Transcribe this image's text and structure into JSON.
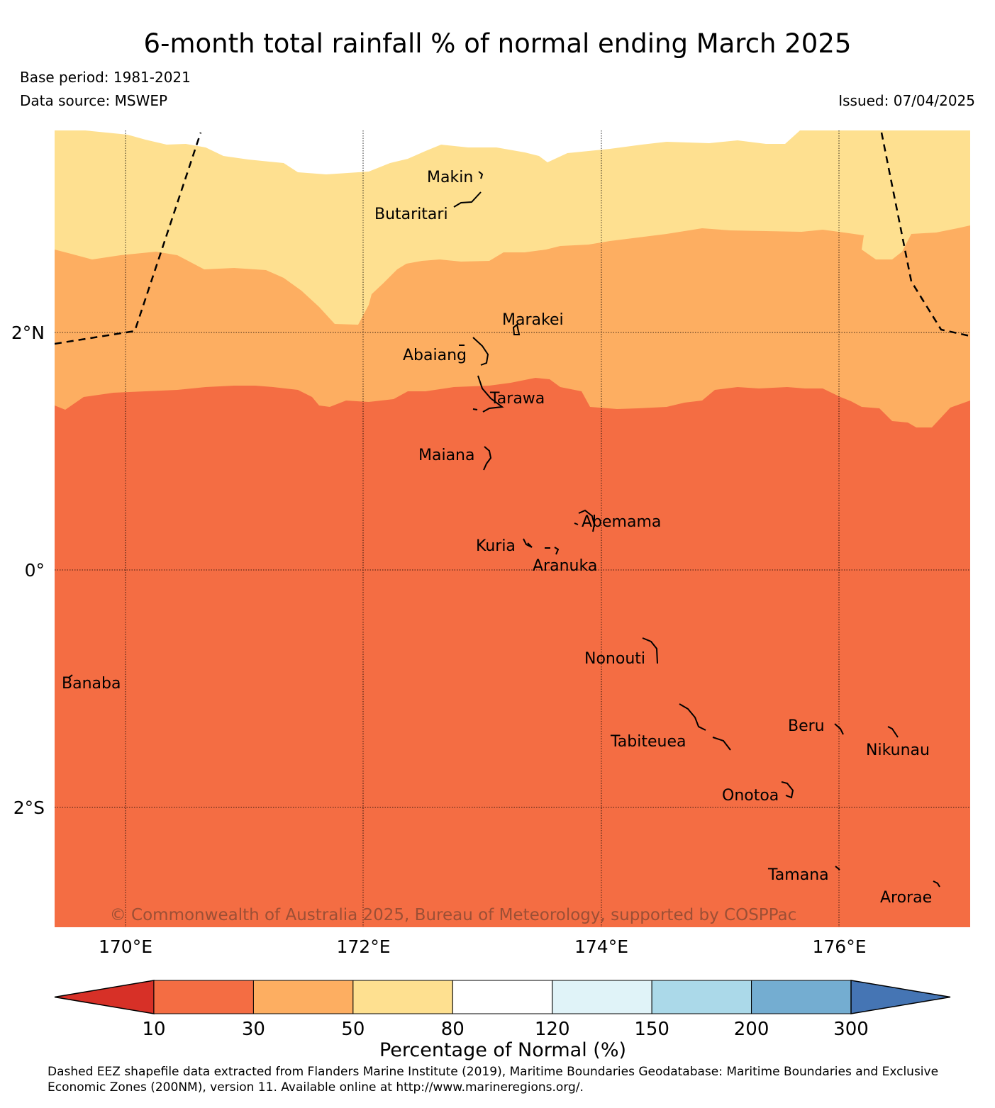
{
  "title": "6-month total rainfall % of normal ending March 2025",
  "base_period": "Base period: 1981-2021",
  "data_source": "Data source: MSWEP",
  "issued": "Issued: 07/04/2025",
  "map": {
    "lat_labels": [
      {
        "lat": 2,
        "label": "2°N"
      },
      {
        "lat": 0,
        "label": "0°"
      },
      {
        "lat": -2,
        "label": "2°S"
      }
    ],
    "lon_labels": [
      {
        "lon": 170,
        "label": "170°E"
      },
      {
        "lon": 172,
        "label": "172°E"
      },
      {
        "lon": 174,
        "label": "174°E"
      },
      {
        "lon": 176,
        "label": "176°E"
      }
    ],
    "islands": [
      {
        "name": "Makin"
      },
      {
        "name": "Butaritari"
      },
      {
        "name": "Marakei"
      },
      {
        "name": "Abaiang"
      },
      {
        "name": "Tarawa"
      },
      {
        "name": "Maiana"
      },
      {
        "name": "Abemama"
      },
      {
        "name": "Kuria"
      },
      {
        "name": "Aranuka"
      },
      {
        "name": "Nonouti"
      },
      {
        "name": "Banaba"
      },
      {
        "name": "Tabiteuea"
      },
      {
        "name": "Beru"
      },
      {
        "name": "Nikunau"
      },
      {
        "name": "Onotoa"
      },
      {
        "name": "Tamana"
      },
      {
        "name": "Arorae"
      }
    ],
    "copyright": "© Commonwealth of Australia 2025, Bureau of Meteorology, supported by COSPPac"
  },
  "colorbar": {
    "label": "Percentage of Normal (%)",
    "ticks": [
      "10",
      "30",
      "50",
      "80",
      "120",
      "150",
      "200",
      "300"
    ],
    "colors": [
      "#d73027",
      "#f46d43",
      "#fdae61",
      "#fee090",
      "#ffffff",
      "#e0f3f8",
      "#abd9e9",
      "#74add1",
      "#4575b4"
    ]
  },
  "footnote": "Dashed EEZ shapefile data extracted from Flanders Marine Institute (2019), Maritime Boundaries Geodatabase: Maritime Boundaries and Exclusive Economic Zones (200NM), version 11. Available online at http://www.marineregions.org/."
}
